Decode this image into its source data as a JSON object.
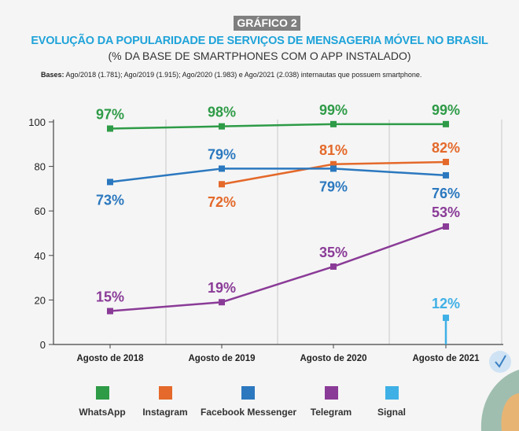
{
  "header": {
    "badge": "GRÁFICO 2",
    "title": "EVOLUÇÃO DA POPULARIDADE DE SERVIÇOS DE MENSAGERIA MÓVEL NO BRASIL",
    "subtitle": "(% DA BASE DE SMARTPHONES COM O APP INSTALADO)",
    "bases_label": "Bases:",
    "bases_text": " Ago/2018 (1.781); Ago/2019 (1.915); Ago/2020 (1.983) e  Ago/2021 (2.038) internautas que possuem smartphone."
  },
  "chart_data": {
    "type": "line",
    "categories": [
      "Agosto de 2018",
      "Agosto de 2019",
      "Agosto de 2020",
      "Agosto de 2021"
    ],
    "ylim": [
      0,
      100
    ],
    "yticks": [
      "0",
      "20",
      "40",
      "60",
      "80",
      "100"
    ],
    "grid": "vertical",
    "legend": "bottom",
    "series": [
      {
        "name": "WhatsApp",
        "color": "#2e9b47",
        "values": [
          97,
          98,
          99,
          99
        ],
        "labels": [
          "97%",
          "98%",
          "99%",
          "99%"
        ]
      },
      {
        "name": "Instagram",
        "color": "#e4692a",
        "values": [
          null,
          72,
          81,
          82
        ],
        "labels": [
          "",
          "72%",
          "81%",
          "82%"
        ]
      },
      {
        "name": "Facebook Messenger",
        "color": "#2b78bf",
        "values": [
          73,
          79,
          79,
          76
        ],
        "labels": [
          "73%",
          "79%",
          "79%",
          "76%"
        ]
      },
      {
        "name": "Telegram",
        "color": "#8a3b97",
        "values": [
          15,
          19,
          35,
          53
        ],
        "labels": [
          "15%",
          "19%",
          "35%",
          "53%"
        ]
      },
      {
        "name": "Signal",
        "color": "#3fb0e6",
        "values": [
          null,
          null,
          null,
          12
        ],
        "labels": [
          "",
          "",
          "",
          "12%"
        ]
      }
    ]
  }
}
